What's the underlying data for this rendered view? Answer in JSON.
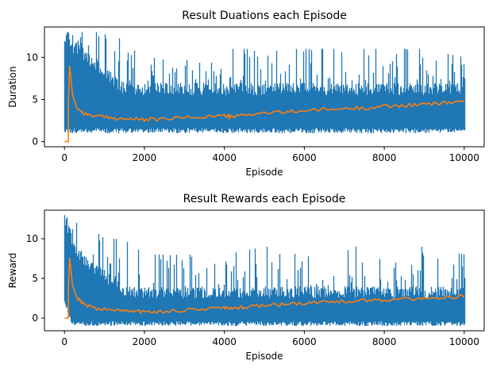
{
  "chart_data": [
    {
      "type": "line",
      "title": "Result Duations each Episode",
      "xlabel": "Episode",
      "ylabel": "Duration",
      "xlim": [
        -500,
        10500
      ],
      "ylim": [
        -0.6,
        13.6
      ],
      "xticks": [
        0,
        2000,
        4000,
        6000,
        8000,
        10000
      ],
      "yticks": [
        0,
        5,
        10
      ],
      "grid": false,
      "legend": "none",
      "series": [
        {
          "color": "#1f77b4",
          "style": "raw per-episode values (noisy band)",
          "x_range": [
            0,
            10000
          ],
          "points_x": [
            0,
            50,
            100,
            200,
            500,
            1000,
            1500,
            2000,
            3000,
            4000,
            5000,
            6000,
            7000,
            8000,
            9000,
            10000
          ],
          "max": [
            13,
            13,
            13,
            13,
            13,
            13,
            12,
            10,
            10,
            11,
            11,
            11,
            11,
            11,
            11,
            10
          ],
          "typical_high": [
            13,
            13,
            13,
            12,
            11,
            9,
            7,
            7,
            7,
            7,
            7,
            7,
            7,
            7,
            7,
            7
          ],
          "min": [
            1,
            1,
            1,
            1,
            1,
            1,
            1,
            1,
            1,
            1,
            1,
            1,
            1,
            1,
            1,
            1
          ]
        },
        {
          "color": "#ff7f0e",
          "style": "100-episode moving average",
          "x": [
            0,
            98,
            100,
            130,
            200,
            300,
            500,
            800,
            1200,
            1600,
            2000,
            2400,
            3000,
            3600,
            4000,
            4200,
            4500,
            5000,
            5500,
            6000,
            6500,
            7000,
            7500,
            8000,
            8500,
            9000,
            9500,
            10000
          ],
          "y": [
            0,
            0,
            5.0,
            9.0,
            5.6,
            4.1,
            3.3,
            3.0,
            2.8,
            2.7,
            2.6,
            2.65,
            2.85,
            3.0,
            3.1,
            2.9,
            3.2,
            3.4,
            3.5,
            3.7,
            3.8,
            3.9,
            4.0,
            4.2,
            4.3,
            4.4,
            4.6,
            4.8
          ]
        }
      ]
    },
    {
      "type": "line",
      "title": "Result Rewards each Episode",
      "xlabel": "Episode",
      "ylabel": "Reward",
      "xlim": [
        -500,
        10500
      ],
      "ylim": [
        -1.6,
        13.6
      ],
      "xticks": [
        0,
        2000,
        4000,
        6000,
        8000,
        10000
      ],
      "yticks": [
        0,
        5,
        10
      ],
      "grid": false,
      "legend": "none",
      "series": [
        {
          "color": "#1f77b4",
          "style": "raw per-episode values (noisy band)",
          "x_range": [
            0,
            10000
          ],
          "points_x": [
            0,
            50,
            100,
            200,
            500,
            1000,
            1500,
            2000,
            3000,
            4000,
            5000,
            6000,
            7000,
            8000,
            9000,
            10000
          ],
          "max": [
            13,
            13,
            12,
            12,
            12,
            10,
            10,
            8,
            8,
            8,
            9,
            9,
            9,
            9,
            9,
            8
          ],
          "typical_high": [
            13,
            12,
            12,
            10,
            8,
            6,
            4,
            4,
            4,
            4,
            4,
            4,
            4,
            4,
            4,
            4
          ],
          "min": [
            2,
            1,
            0,
            -1,
            -1,
            -1,
            -1,
            -1,
            -1,
            -1,
            -1,
            -1,
            -1,
            -1,
            -1,
            -1
          ]
        },
        {
          "color": "#ff7f0e",
          "style": "100-episode moving average",
          "x": [
            0,
            98,
            100,
            130,
            200,
            300,
            500,
            800,
            1200,
            1600,
            2000,
            2400,
            3000,
            3600,
            4000,
            4200,
            4500,
            5000,
            5500,
            6000,
            6500,
            7000,
            7500,
            8000,
            8500,
            9000,
            9500,
            10000
          ],
          "y": [
            0,
            0,
            4.0,
            7.6,
            4.2,
            2.7,
            1.7,
            1.2,
            1.0,
            0.9,
            0.8,
            0.8,
            1.0,
            1.2,
            1.3,
            1.1,
            1.4,
            1.6,
            1.7,
            1.9,
            2.0,
            2.1,
            2.2,
            2.3,
            2.4,
            2.5,
            2.6,
            2.7
          ]
        }
      ]
    }
  ]
}
